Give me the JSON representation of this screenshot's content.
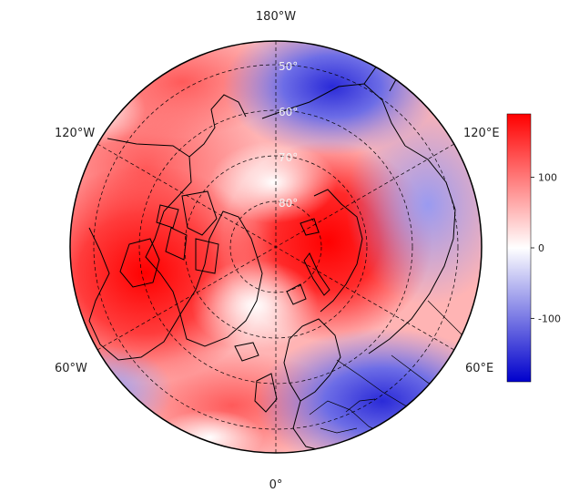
{
  "map": {
    "projection": "north-polar-stereographic",
    "colors": {
      "high": "#ff0000",
      "mid": "#ffffff",
      "low": "#0000cc",
      "outline": "#000000"
    },
    "lon_labels": {
      "top": "180°W",
      "upper_left": "120°W",
      "upper_right": "120°E",
      "lower_left": "60°W",
      "lower_right": "60°E",
      "bottom": "0°"
    },
    "lat_labels": [
      "50°",
      "60°",
      "70°",
      "80°"
    ],
    "colorbar": {
      "ticks": [
        "100",
        "0",
        "-100"
      ],
      "tick_values": [
        100,
        0,
        -100
      ],
      "range": [
        -190,
        190
      ]
    },
    "field_anomalies": [
      {
        "region": "North America / Hudson Bay",
        "sign": "positive"
      },
      {
        "region": "Northern Siberia",
        "sign": "positive"
      },
      {
        "region": "North Pacific / Kamchatka",
        "sign": "negative"
      },
      {
        "region": "Europe",
        "sign": "negative"
      }
    ]
  }
}
